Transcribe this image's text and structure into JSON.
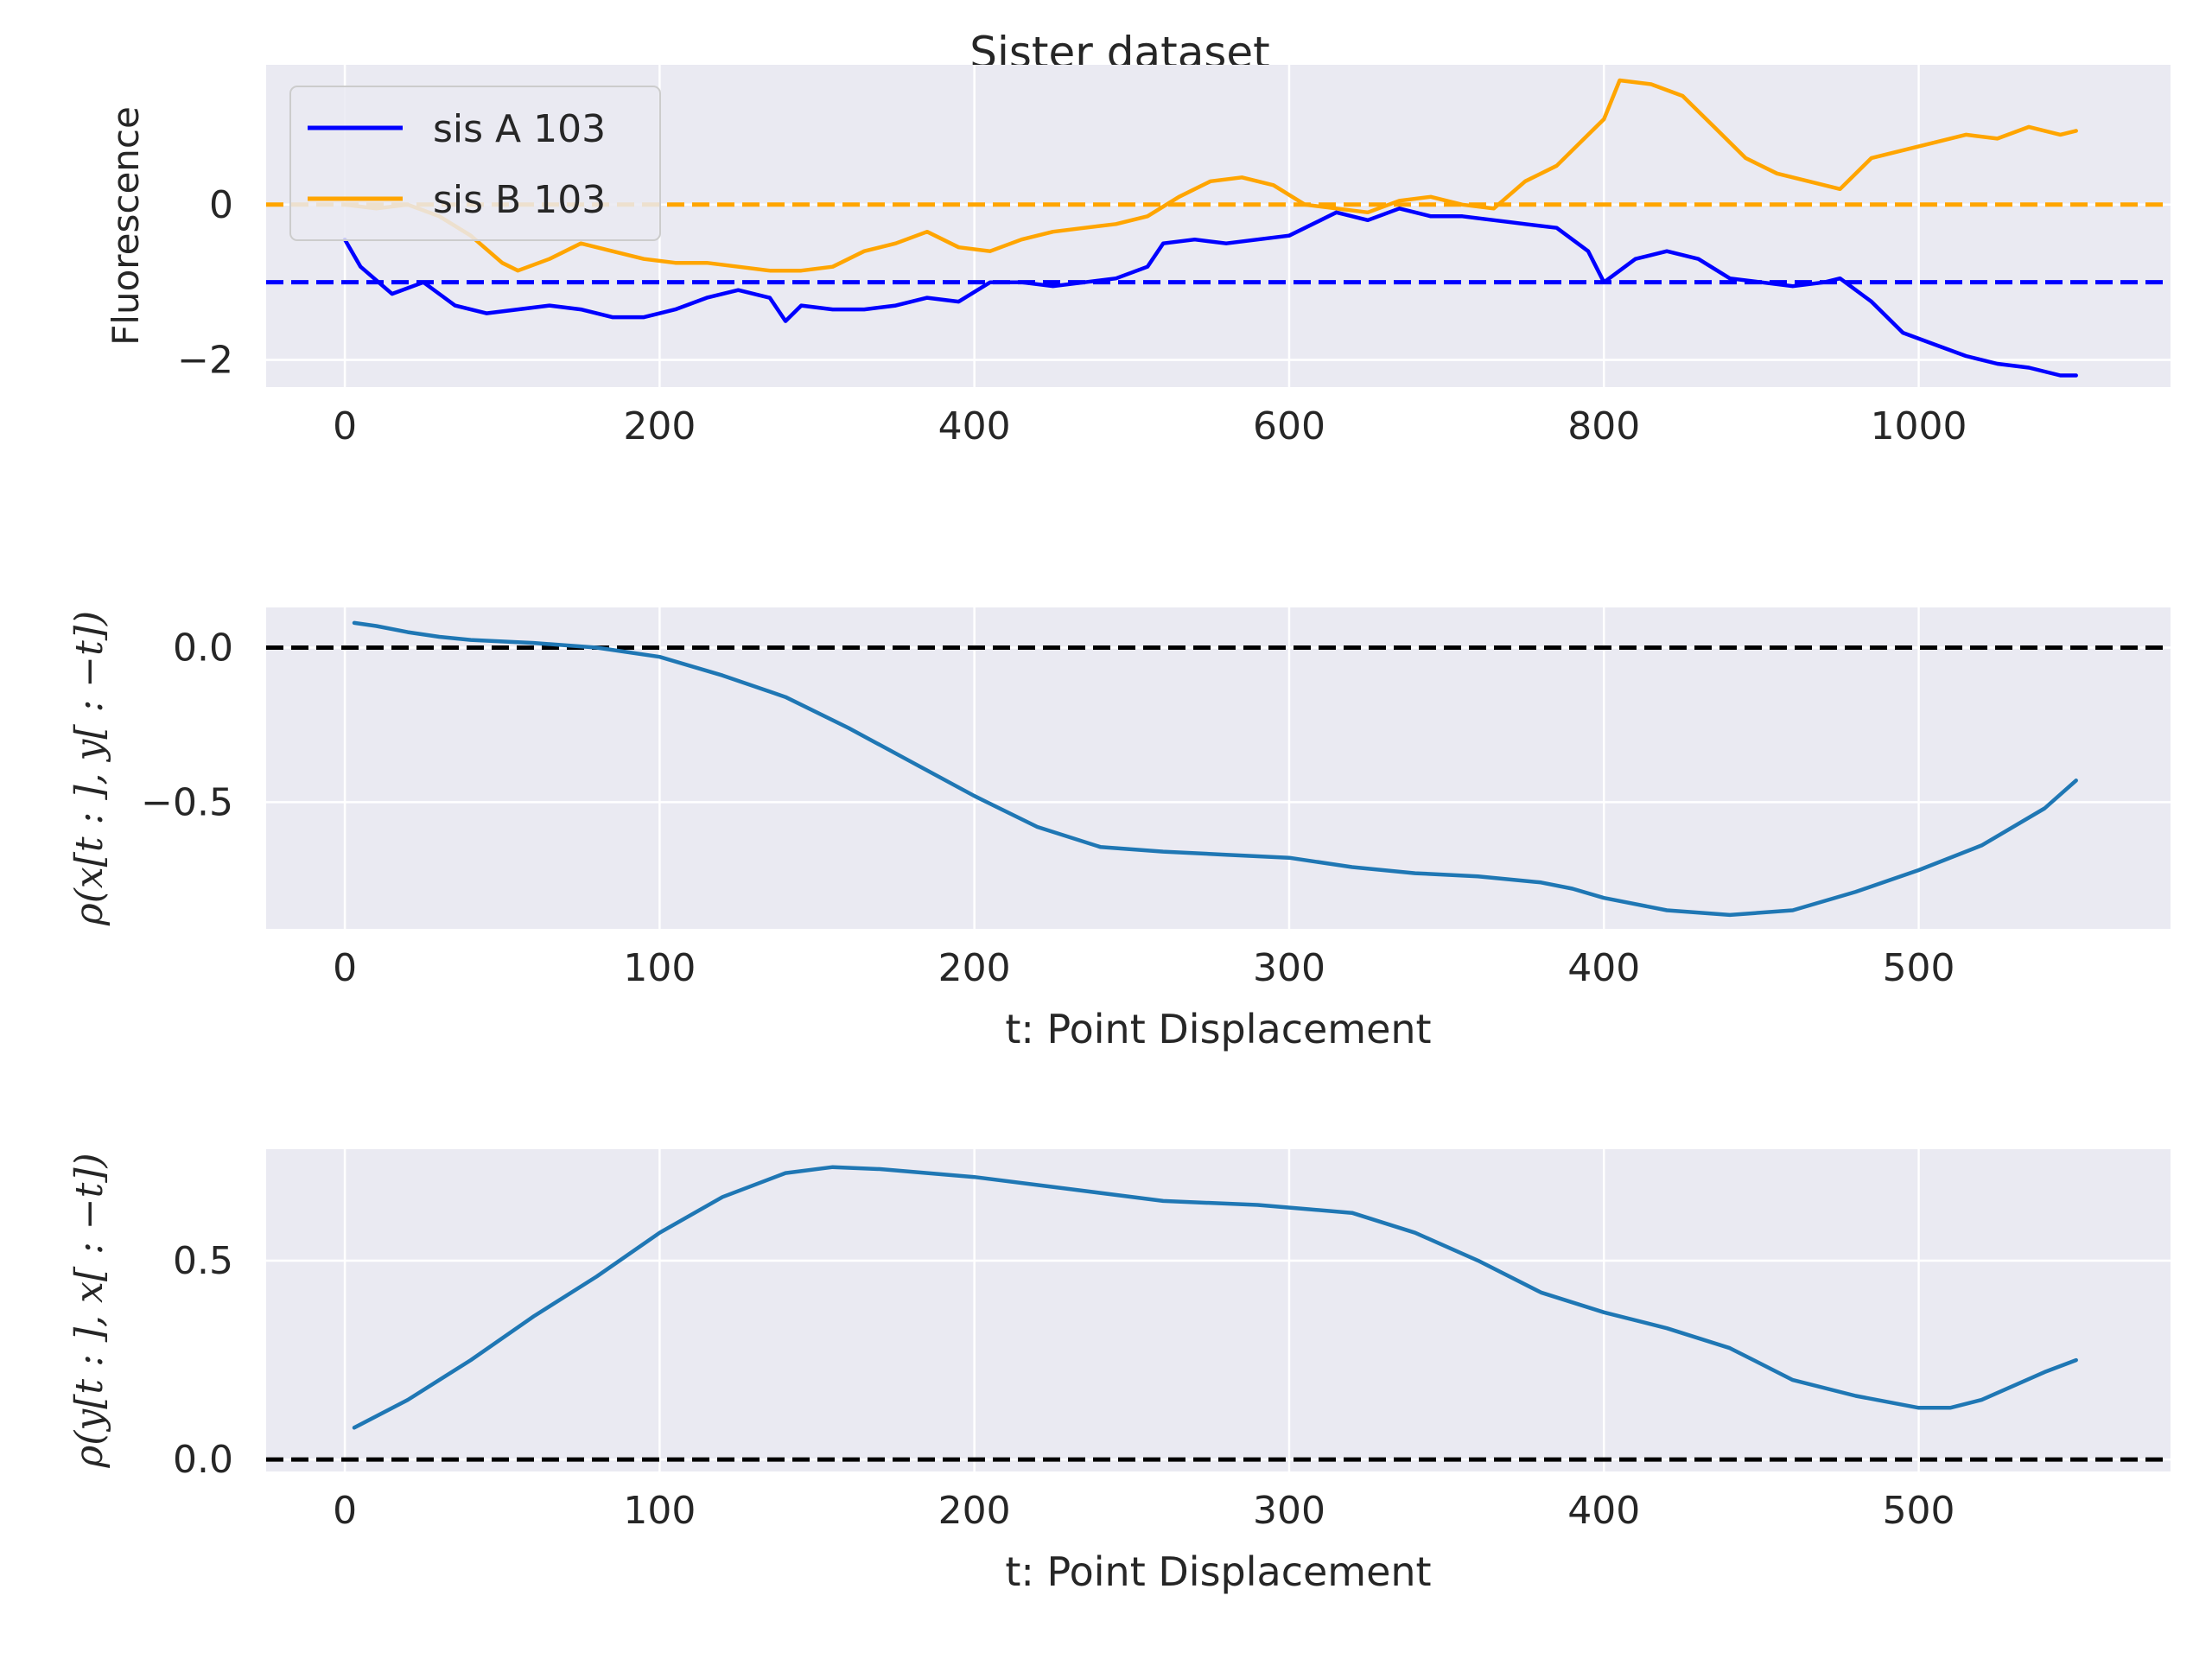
{
  "figure": {
    "title": "Sister dataset"
  },
  "chart_data": [
    {
      "type": "line",
      "title": "",
      "xlabel": "",
      "ylabel": "Fluorescence",
      "xlim": [
        -50,
        1160
      ],
      "ylim": [
        -2.35,
        1.8
      ],
      "xticks": [
        0,
        200,
        400,
        600,
        800,
        1000
      ],
      "xtick_labels": [
        "0",
        "200",
        "400",
        "600",
        "800",
        "1000"
      ],
      "yticks": [
        0,
        -2
      ],
      "ytick_labels": [
        "0",
        "−2"
      ],
      "grid": true,
      "legend": {
        "placement": "upper-left",
        "entries": [
          "sis A 103",
          "sis B 103"
        ]
      },
      "series": [
        {
          "name": "sis A 103",
          "color": "#0000ff",
          "x": [
            0,
            10,
            30,
            50,
            70,
            90,
            110,
            130,
            150,
            170,
            190,
            210,
            230,
            250,
            270,
            280,
            290,
            310,
            330,
            350,
            370,
            390,
            410,
            430,
            450,
            470,
            490,
            510,
            520,
            540,
            560,
            580,
            600,
            620,
            630,
            650,
            670,
            690,
            710,
            730,
            750,
            770,
            790,
            800,
            820,
            840,
            860,
            880,
            900,
            920,
            940,
            950,
            970,
            990,
            1010,
            1030,
            1050,
            1070,
            1090,
            1100
          ],
          "values": [
            -0.45,
            -0.8,
            -1.15,
            -1.0,
            -1.3,
            -1.4,
            -1.35,
            -1.3,
            -1.35,
            -1.45,
            -1.45,
            -1.35,
            -1.2,
            -1.1,
            -1.2,
            -1.5,
            -1.3,
            -1.35,
            -1.35,
            -1.3,
            -1.2,
            -1.25,
            -1.0,
            -1.0,
            -1.05,
            -1.0,
            -0.95,
            -0.8,
            -0.5,
            -0.45,
            -0.5,
            -0.45,
            -0.4,
            -0.2,
            -0.1,
            -0.2,
            -0.05,
            -0.15,
            -0.15,
            -0.2,
            -0.25,
            -0.3,
            -0.6,
            -1.0,
            -0.7,
            -0.6,
            -0.7,
            -0.95,
            -1.0,
            -1.05,
            -1.0,
            -0.95,
            -1.25,
            -1.65,
            -1.8,
            -1.95,
            -2.05,
            -2.1,
            -2.2,
            -2.2
          ]
        },
        {
          "name": "sis B 103",
          "color": "#ffa500",
          "x": [
            0,
            20,
            40,
            60,
            80,
            100,
            110,
            130,
            150,
            170,
            190,
            210,
            230,
            250,
            270,
            290,
            310,
            330,
            350,
            370,
            390,
            410,
            430,
            450,
            470,
            490,
            510,
            530,
            550,
            570,
            590,
            610,
            630,
            650,
            670,
            690,
            710,
            730,
            750,
            770,
            790,
            800,
            810,
            830,
            850,
            870,
            890,
            910,
            930,
            950,
            970,
            990,
            1010,
            1030,
            1050,
            1070,
            1090,
            1100
          ],
          "values": [
            0.0,
            -0.05,
            0.0,
            -0.15,
            -0.4,
            -0.75,
            -0.85,
            -0.7,
            -0.5,
            -0.6,
            -0.7,
            -0.75,
            -0.75,
            -0.8,
            -0.85,
            -0.85,
            -0.8,
            -0.6,
            -0.5,
            -0.35,
            -0.55,
            -0.6,
            -0.45,
            -0.35,
            -0.3,
            -0.25,
            -0.15,
            0.1,
            0.3,
            0.35,
            0.25,
            0.0,
            -0.05,
            -0.1,
            0.05,
            0.1,
            0.0,
            -0.05,
            0.3,
            0.5,
            0.9,
            1.1,
            1.6,
            1.55,
            1.4,
            1.0,
            0.6,
            0.4,
            0.3,
            0.2,
            0.6,
            0.7,
            0.8,
            0.9,
            0.85,
            1.0,
            0.9,
            0.95
          ]
        }
      ],
      "reference_lines": [
        {
          "y": 0,
          "color": "#ffa500",
          "style": "dashed"
        },
        {
          "y": -1,
          "color": "#0000ff",
          "style": "dashed"
        }
      ]
    },
    {
      "type": "line",
      "title": "",
      "xlabel": "t: Point Displacement",
      "ylabel": "ρ(x[t : ], y[ : −t])",
      "xlim": [
        -25,
        580
      ],
      "ylim": [
        -0.91,
        0.13
      ],
      "xticks": [
        0,
        100,
        200,
        300,
        400,
        500
      ],
      "xtick_labels": [
        "0",
        "100",
        "200",
        "300",
        "400",
        "500"
      ],
      "yticks": [
        0.0,
        -0.5
      ],
      "ytick_labels": [
        "0.0",
        "−0.5"
      ],
      "grid": true,
      "series": [
        {
          "color": "#1f77b4",
          "x": [
            3,
            10,
            20,
            30,
            40,
            60,
            80,
            100,
            120,
            140,
            160,
            180,
            200,
            220,
            240,
            260,
            280,
            300,
            320,
            340,
            360,
            380,
            390,
            400,
            420,
            440,
            460,
            480,
            500,
            520,
            540,
            550
          ],
          "values": [
            0.08,
            0.07,
            0.05,
            0.035,
            0.025,
            0.015,
            0.0,
            -0.03,
            -0.09,
            -0.16,
            -0.26,
            -0.37,
            -0.48,
            -0.58,
            -0.645,
            -0.66,
            -0.67,
            -0.68,
            -0.71,
            -0.73,
            -0.74,
            -0.76,
            -0.78,
            -0.81,
            -0.85,
            -0.865,
            -0.85,
            -0.79,
            -0.72,
            -0.64,
            -0.52,
            -0.43
          ]
        }
      ],
      "reference_lines": [
        {
          "y": 0,
          "color": "#000000",
          "style": "dashed"
        }
      ]
    },
    {
      "type": "line",
      "title": "",
      "xlabel": "t: Point Displacement",
      "ylabel": "ρ(y[t : ], x[ : −t])",
      "xlim": [
        -25,
        580
      ],
      "ylim": [
        -0.03,
        0.78
      ],
      "xticks": [
        0,
        100,
        200,
        300,
        400,
        500
      ],
      "xtick_labels": [
        "0",
        "100",
        "200",
        "300",
        "400",
        "500"
      ],
      "yticks": [
        0.5,
        0.0
      ],
      "ytick_labels": [
        "0.5",
        "0.0"
      ],
      "grid": true,
      "series": [
        {
          "color": "#1f77b4",
          "x": [
            3,
            20,
            40,
            60,
            80,
            100,
            120,
            140,
            155,
            170,
            200,
            230,
            260,
            290,
            320,
            340,
            360,
            380,
            400,
            420,
            440,
            460,
            480,
            500,
            510,
            520,
            540,
            550
          ],
          "values": [
            0.08,
            0.15,
            0.25,
            0.36,
            0.46,
            0.57,
            0.66,
            0.72,
            0.735,
            0.73,
            0.71,
            0.68,
            0.65,
            0.64,
            0.62,
            0.57,
            0.5,
            0.42,
            0.37,
            0.33,
            0.28,
            0.2,
            0.16,
            0.13,
            0.13,
            0.15,
            0.22,
            0.25
          ]
        }
      ],
      "reference_lines": [
        {
          "y": 0,
          "color": "#000000",
          "style": "dashed"
        }
      ]
    }
  ]
}
